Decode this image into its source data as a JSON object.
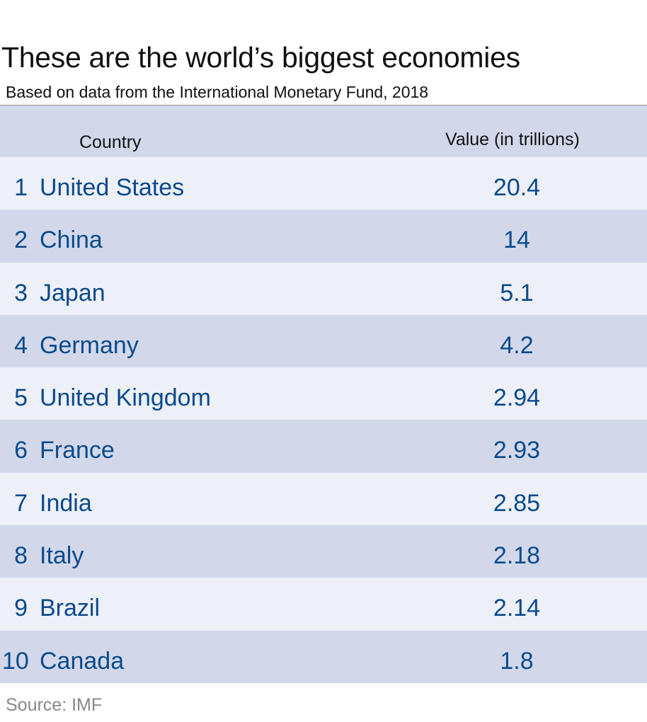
{
  "chart_data": {
    "type": "table",
    "title": "These are the world’s biggest economies",
    "subtitle": "Based on data from the International Monetary Fund, 2018",
    "columns": [
      "Country",
      "Value (in trillions)"
    ],
    "rows": [
      {
        "rank": "1",
        "country": "United States",
        "value": "20.4"
      },
      {
        "rank": "2",
        "country": "China",
        "value": "14"
      },
      {
        "rank": "3",
        "country": "Japan",
        "value": "5.1"
      },
      {
        "rank": "4",
        "country": "Germany",
        "value": "4.2"
      },
      {
        "rank": "5",
        "country": "United Kingdom",
        "value": "2.94"
      },
      {
        "rank": "6",
        "country": "France",
        "value": "2.93"
      },
      {
        "rank": "7",
        "country": "India",
        "value": "2.85"
      },
      {
        "rank": "8",
        "country": "Italy",
        "value": "2.18"
      },
      {
        "rank": "9",
        "country": "Brazil",
        "value": "2.14"
      },
      {
        "rank": "10",
        "country": "Canada",
        "value": "1.8"
      }
    ],
    "source": "Source: IMF",
    "colors": {
      "text": "#0b4a8d",
      "band_dark": "#d2d8ea",
      "band_light": "#eef0f8"
    }
  }
}
